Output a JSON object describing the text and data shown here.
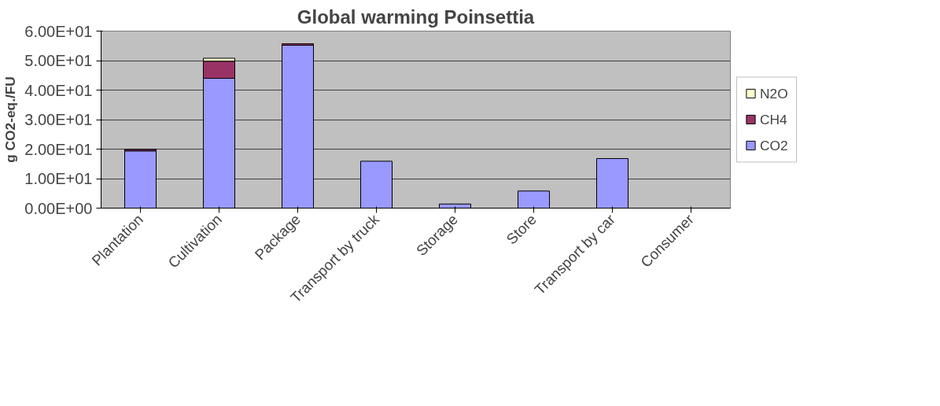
{
  "chart_data": {
    "type": "bar",
    "title": "Global warming Poinsettia",
    "ylabel": "g CO2-eq./FU",
    "stacked": true,
    "legend": "right",
    "grid": "y",
    "categories": [
      "Plantation",
      "Cultivation",
      "Package",
      "Transport by truck",
      "Storage",
      "Store",
      "Transport by car",
      "Consumer"
    ],
    "series": [
      {
        "name": "CO2",
        "color": "#9999ff",
        "values": [
          19.4,
          44.0,
          55.2,
          15.9,
          1.4,
          5.8,
          16.8,
          0
        ]
      },
      {
        "name": "CH4",
        "color": "#993366",
        "values": [
          0.5,
          5.8,
          0.5,
          0,
          0,
          0,
          0,
          0
        ]
      },
      {
        "name": "N2O",
        "color": "#ffffcc",
        "values": [
          0,
          1.0,
          0,
          0,
          0,
          0,
          0,
          0
        ]
      }
    ],
    "ylim": [
      0,
      60
    ],
    "yticks": [
      {
        "value": 0,
        "label": "0.00E+00"
      },
      {
        "value": 10,
        "label": "1.00E+01"
      },
      {
        "value": 20,
        "label": "2.00E+01"
      },
      {
        "value": 30,
        "label": "3.00E+01"
      },
      {
        "value": 40,
        "label": "4.00E+01"
      },
      {
        "value": 50,
        "label": "5.00E+01"
      },
      {
        "value": 60,
        "label": "6.00E+01"
      }
    ]
  }
}
